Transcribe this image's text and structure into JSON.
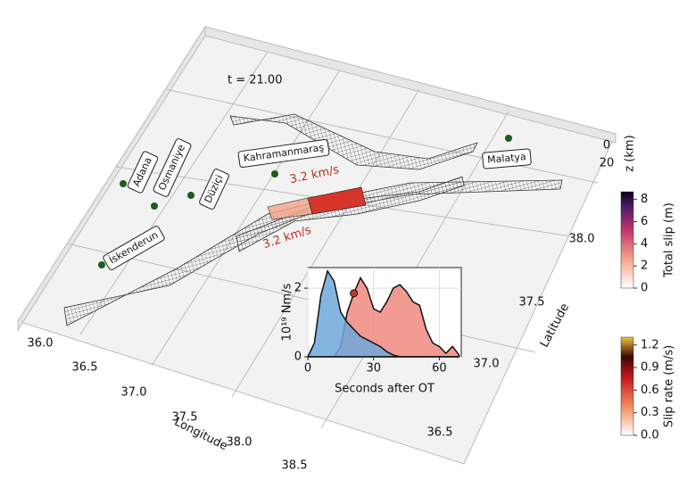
{
  "map": {
    "time_label": "t = 21.00",
    "cities": [
      "Adana",
      "Osmaniye",
      "Düziçi",
      "Kahramanmaraş",
      "İskenderun",
      "Malatya"
    ],
    "speed_labels": [
      "3.2 km/s",
      "3.2 km/s"
    ],
    "x_label": "Longitude",
    "y_label": "Latitude",
    "z_label": "z (km)",
    "x_tick_labels": [
      "36.0",
      "36.5",
      "37.0",
      "37.5",
      "38.0",
      "38.5"
    ],
    "y_tick_labels": [
      "38.0",
      "37.5",
      "37.0",
      "36.5"
    ],
    "z_tick_labels": [
      "0",
      "20"
    ]
  },
  "colorbars": [
    {
      "label": "Total slip (m)",
      "tick_labels": [
        "0",
        "2",
        "4",
        "6",
        "8"
      ]
    },
    {
      "label": "Slip rate (m/s)",
      "tick_labels": [
        "0.0",
        "0.3",
        "0.6",
        "0.9",
        "1.2"
      ]
    }
  ],
  "chart_data": {
    "type": "area",
    "x_label": "Seconds after OT",
    "y_label": "10¹⁹ Nm/s",
    "x": [
      0,
      3,
      6,
      9,
      12,
      15,
      18,
      21,
      24,
      27,
      30,
      33,
      36,
      39,
      42,
      45,
      48,
      51,
      54,
      57,
      60,
      63,
      66,
      69
    ],
    "series": [
      {
        "color": "#6fa8dc",
        "values": [
          0,
          0.4,
          1.8,
          2.5,
          2.2,
          1.3,
          1.0,
          0.8,
          0.6,
          0.5,
          0.4,
          0.3,
          0.15,
          0.05,
          0,
          0,
          0,
          0,
          0,
          0,
          0,
          0,
          0,
          0
        ]
      },
      {
        "color": "#f08a80",
        "values": [
          0,
          0,
          0,
          0,
          0,
          0.3,
          1.3,
          1.85,
          2.3,
          2.0,
          1.4,
          1.3,
          1.6,
          2.0,
          2.1,
          1.9,
          1.6,
          1.5,
          0.8,
          0.4,
          0.3,
          0.1,
          0.3,
          0.05
        ]
      }
    ],
    "marker": {
      "x": 21,
      "y": 1.85,
      "color": "#c0392b"
    },
    "xlim": [
      0,
      70
    ],
    "ylim": [
      0,
      2.6
    ],
    "xticks": [
      0,
      30,
      60
    ],
    "yticks": [
      0,
      2
    ],
    "grid": true
  }
}
